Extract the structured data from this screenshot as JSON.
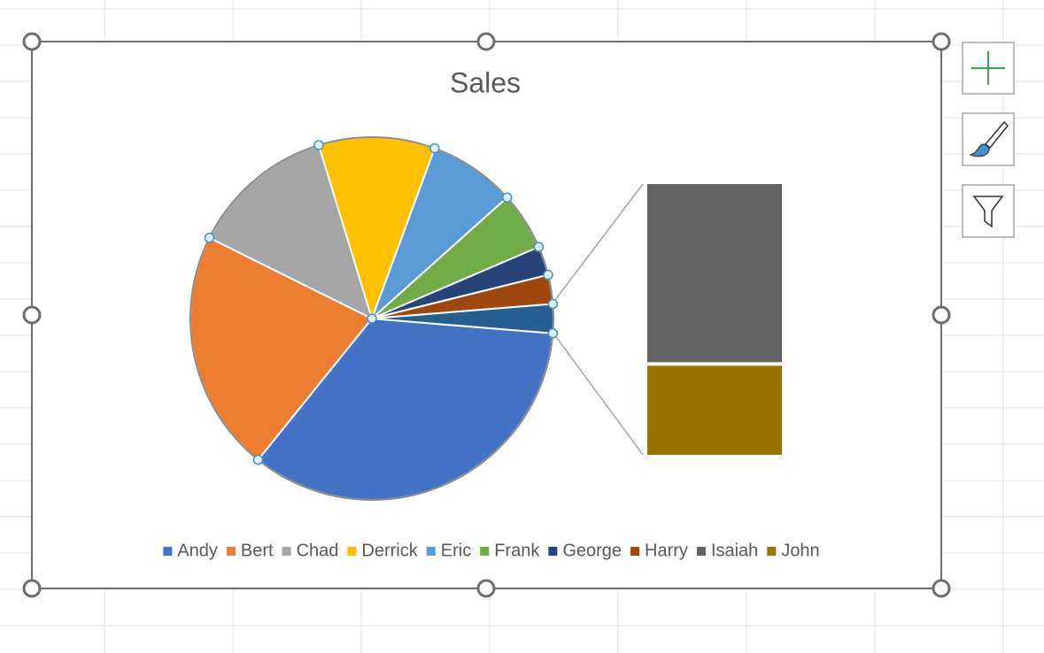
{
  "chart_data": {
    "type": "pie",
    "title": "Sales",
    "categories": [
      "Andy",
      "Bert",
      "Chad",
      "Derrick",
      "Eric",
      "Frank",
      "George",
      "Harry",
      "Isaiah",
      "John"
    ],
    "values": [
      400,
      250,
      150,
      120,
      90,
      60,
      30,
      30,
      20,
      10
    ],
    "colors": [
      "#4472c4",
      "#ed7d31",
      "#a5a5a5",
      "#ffc000",
      "#5b9bd5",
      "#70ad47",
      "#264478",
      "#9e480e",
      "#636363",
      "#997300"
    ],
    "secondary_plot_size": 2,
    "other_color": "#255e91",
    "legend": "bottom"
  }
}
